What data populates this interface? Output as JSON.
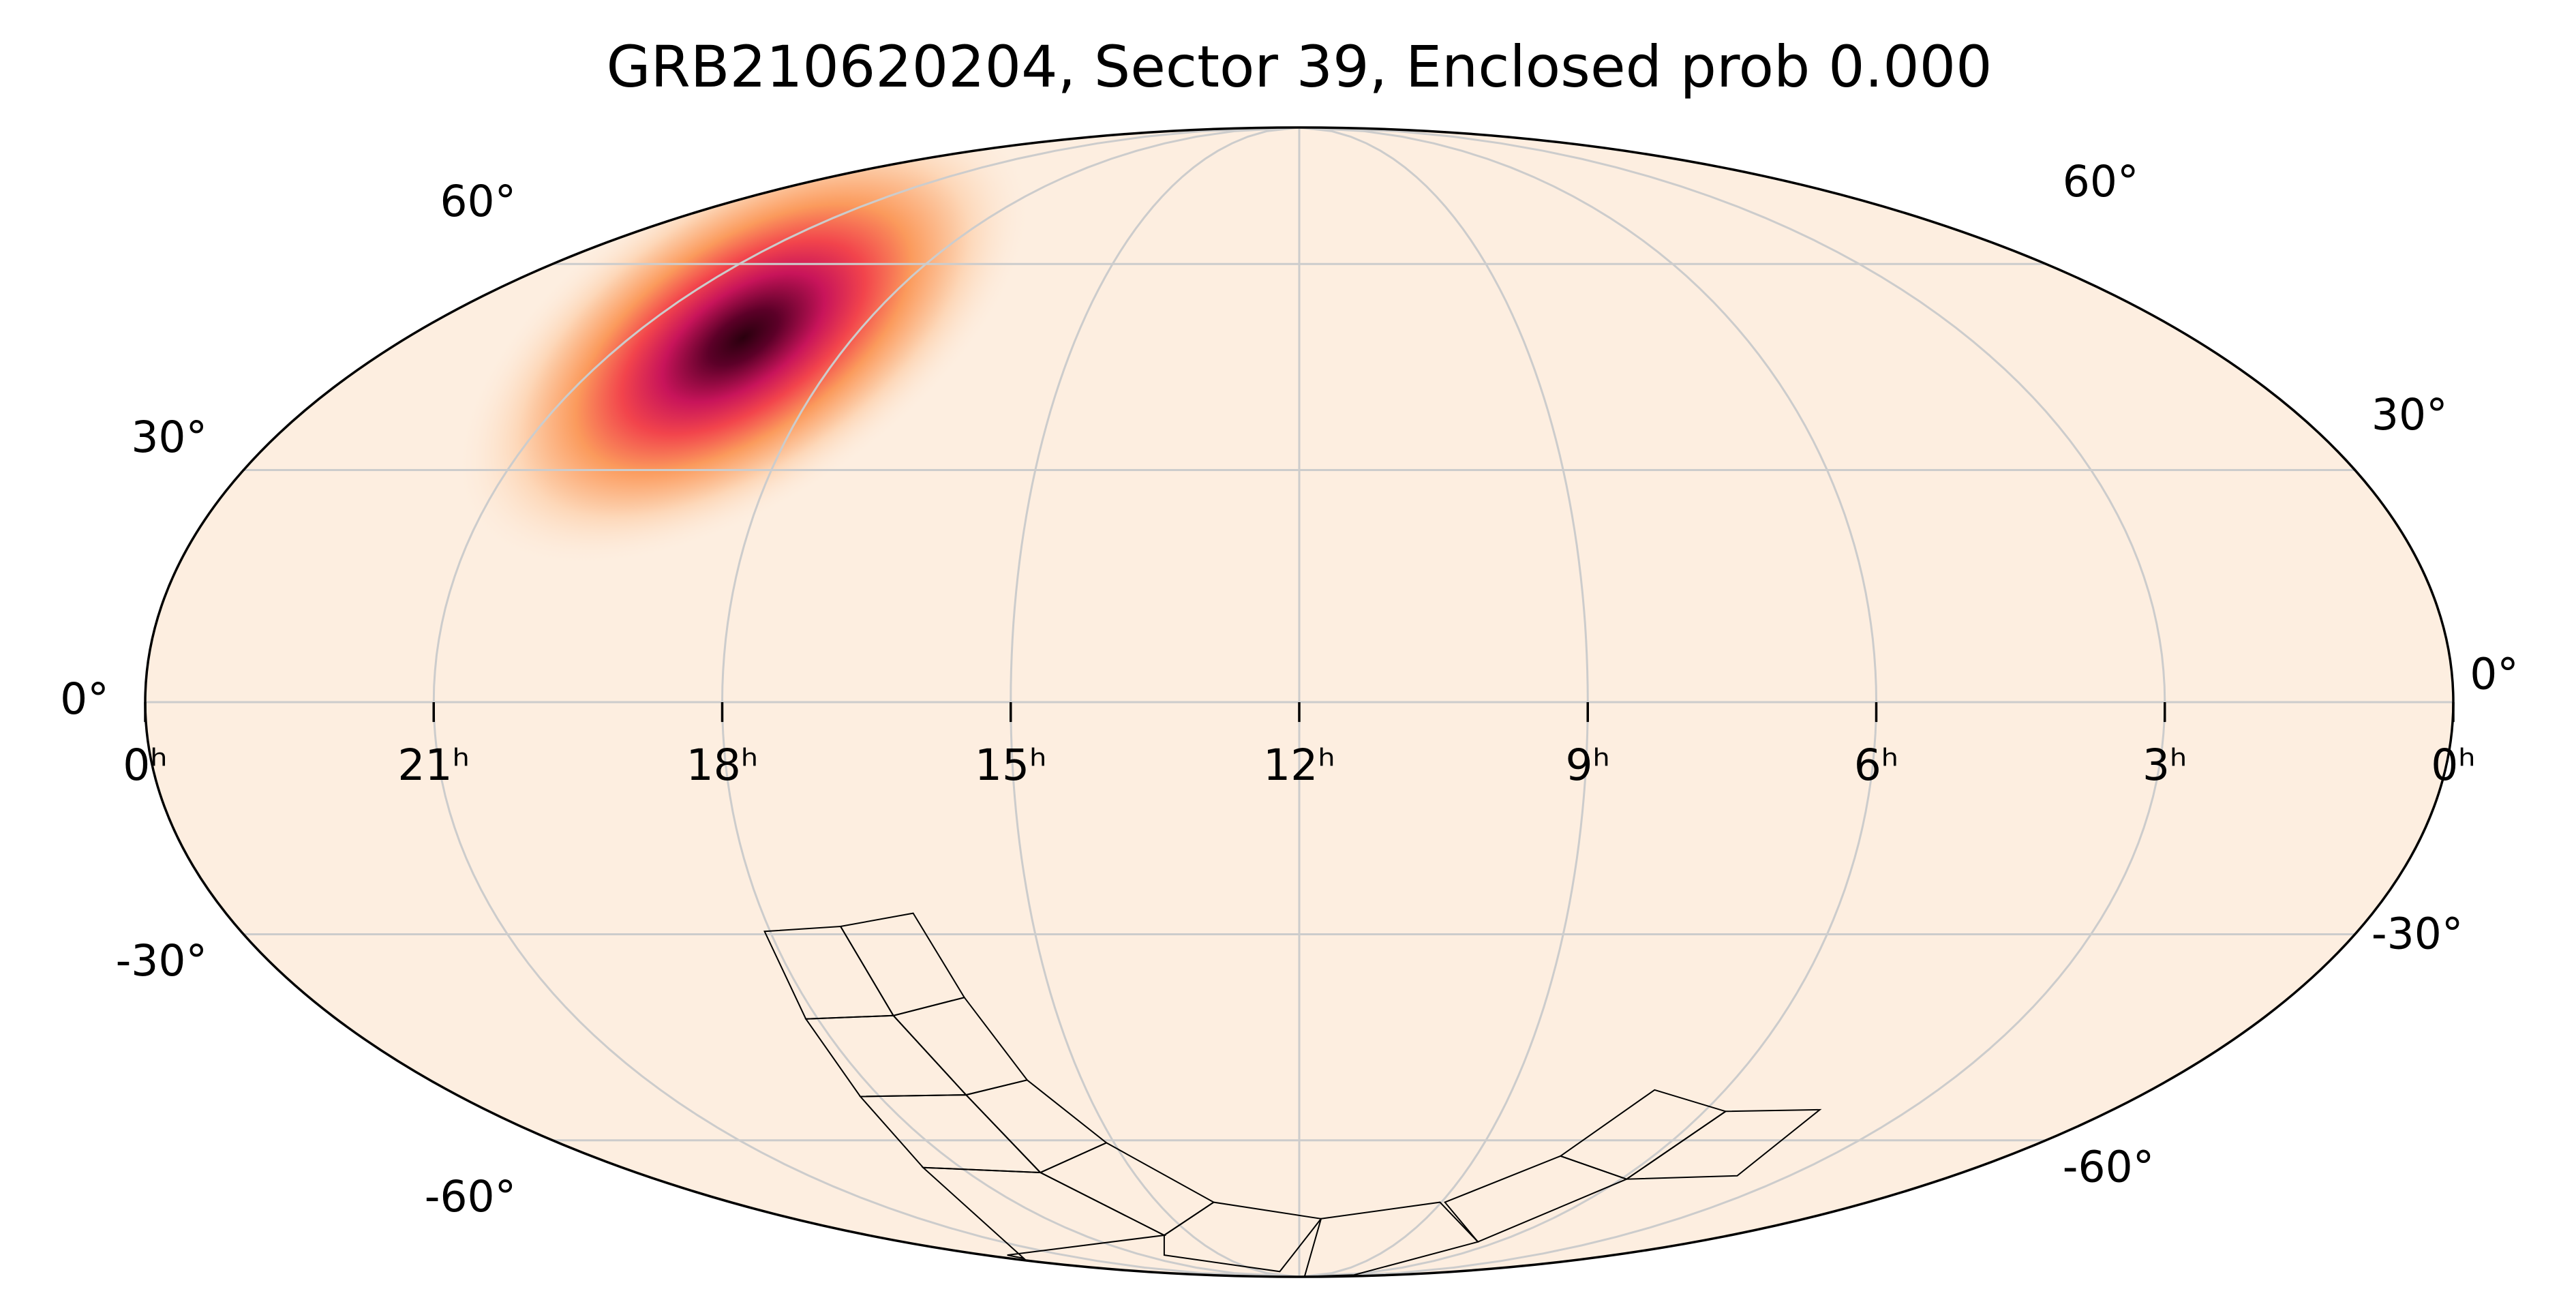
{
  "chart_data": {
    "type": "skymap",
    "projection": "mollweide",
    "title": "GRB210620204, Sector 39, Enclosed prob 0.000",
    "xlim": [
      24,
      0
    ],
    "xticks": [
      {
        "value": 24,
        "label": "0ʰ"
      },
      {
        "value": 21,
        "label": "21ʰ"
      },
      {
        "value": 18,
        "label": "18ʰ"
      },
      {
        "value": 15,
        "label": "15ʰ"
      },
      {
        "value": 12,
        "label": "12ʰ"
      },
      {
        "value": 9,
        "label": "9ʰ"
      },
      {
        "value": 6,
        "label": "6ʰ"
      },
      {
        "value": 3,
        "label": "3ʰ"
      },
      {
        "value": 0,
        "label": "0ʰ"
      }
    ],
    "ylim": [
      -90,
      90
    ],
    "yticks": [
      {
        "value": 60,
        "label": "60°"
      },
      {
        "value": 30,
        "label": "30°"
      },
      {
        "value": 0,
        "label": "0°"
      },
      {
        "value": -30,
        "label": "-30°"
      },
      {
        "value": -60,
        "label": "-60°"
      }
    ],
    "grid": true,
    "probability_peak": {
      "ra_hours": 19.5,
      "dec": 48
    }
  }
}
